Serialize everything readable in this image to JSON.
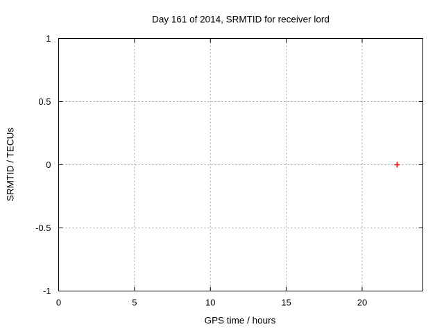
{
  "chart_data": {
    "type": "scatter",
    "title": "Day 161 of 2014, SRMTID for receiver lord",
    "xlabel": "GPS time / hours",
    "ylabel": "SRMTID / TECUs",
    "xlim": [
      0,
      24
    ],
    "ylim": [
      -1,
      1
    ],
    "x_ticks": [
      0,
      5,
      10,
      15,
      20
    ],
    "x_tick_labels": [
      "0",
      "5",
      "10",
      "15",
      "20"
    ],
    "y_ticks": [
      -1,
      -0.5,
      0,
      0.5,
      1
    ],
    "y_tick_labels": [
      "-1",
      "-0.5",
      "0",
      "0.5",
      "1"
    ],
    "grid": true,
    "legend": "none",
    "series": [
      {
        "name": "SRMTID",
        "marker": "plus",
        "color": "#ff0000",
        "points": [
          {
            "x": 22.3,
            "y": 0.0
          }
        ]
      }
    ],
    "colors": {
      "background": "#ffffff",
      "axis": "#000000",
      "grid": "#a0a0a0",
      "text": "#000000"
    }
  }
}
